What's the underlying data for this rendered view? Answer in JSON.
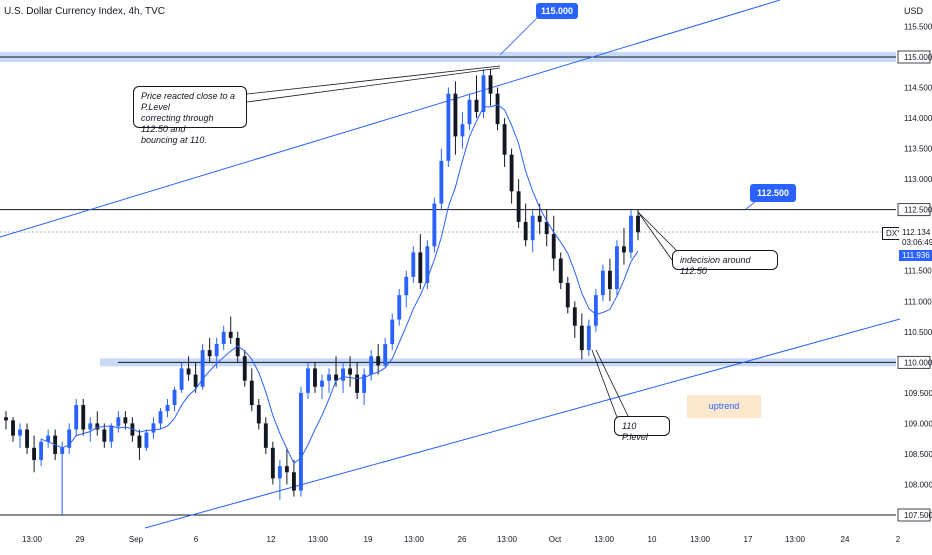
{
  "chart_data": {
    "type": "candlestick",
    "title": "U.S. Dollar Currency Index, 4h, TVC",
    "currency": "USD",
    "symbol": "DXY",
    "last_price": "112.134",
    "countdown": "03:06:49",
    "ma_value": "111.936",
    "ylim": [
      107.4,
      115.6
    ],
    "y_ticks": [
      "107.500",
      "108.000",
      "108.500",
      "109.000",
      "109.500",
      "110.000",
      "110.500",
      "111.000",
      "111.500",
      "112.000",
      "112.500",
      "113.000",
      "113.500",
      "114.000",
      "114.500",
      "115.000",
      "115.500"
    ],
    "x_ticks": [
      "13:00",
      "29",
      "Sep",
      "6",
      "12",
      "13:00",
      "19",
      "13:00",
      "26",
      "13:00",
      "Oct",
      "13:00",
      "10",
      "13:00",
      "17",
      "13:00",
      "24",
      "2"
    ],
    "grid": false,
    "ohlc": [
      [
        109.1,
        109.2,
        108.9,
        109.05
      ],
      [
        109.05,
        109.1,
        108.7,
        108.8
      ],
      [
        108.8,
        109.0,
        108.6,
        108.9
      ],
      [
        108.9,
        109.0,
        108.5,
        108.6
      ],
      [
        108.6,
        108.8,
        108.2,
        108.4
      ],
      [
        108.4,
        108.75,
        108.3,
        108.7
      ],
      [
        108.7,
        108.9,
        108.6,
        108.8
      ],
      [
        108.8,
        108.9,
        108.4,
        108.5
      ],
      [
        108.5,
        108.7,
        107.5,
        108.6
      ],
      [
        108.6,
        109.0,
        108.5,
        108.9
      ],
      [
        108.9,
        109.4,
        108.8,
        109.3
      ],
      [
        109.3,
        109.4,
        108.8,
        108.9
      ],
      [
        108.9,
        109.1,
        108.7,
        109.0
      ],
      [
        109.0,
        109.2,
        108.8,
        108.9
      ],
      [
        108.9,
        109.0,
        108.6,
        108.7
      ],
      [
        108.7,
        109.0,
        108.6,
        108.95
      ],
      [
        108.95,
        109.2,
        108.85,
        109.1
      ],
      [
        109.1,
        109.2,
        108.9,
        109.0
      ],
      [
        109.0,
        109.1,
        108.7,
        108.8
      ],
      [
        108.8,
        108.9,
        108.4,
        108.6
      ],
      [
        108.6,
        108.9,
        108.55,
        108.85
      ],
      [
        108.85,
        109.1,
        108.75,
        109.0
      ],
      [
        109.0,
        109.25,
        108.9,
        109.2
      ],
      [
        109.2,
        109.4,
        109.1,
        109.3
      ],
      [
        109.3,
        109.6,
        109.2,
        109.55
      ],
      [
        109.55,
        110.0,
        109.5,
        109.9
      ],
      [
        109.9,
        110.1,
        109.7,
        109.8
      ],
      [
        109.8,
        110.0,
        109.5,
        109.6
      ],
      [
        109.6,
        110.3,
        109.55,
        110.2
      ],
      [
        110.2,
        110.4,
        110.0,
        110.1
      ],
      [
        110.1,
        110.4,
        109.9,
        110.3
      ],
      [
        110.3,
        110.6,
        110.2,
        110.5
      ],
      [
        110.5,
        110.75,
        110.3,
        110.4
      ],
      [
        110.4,
        110.5,
        110.0,
        110.1
      ],
      [
        110.1,
        110.2,
        109.6,
        109.7
      ],
      [
        109.7,
        109.9,
        109.2,
        109.3
      ],
      [
        109.3,
        109.4,
        108.9,
        109.0
      ],
      [
        109.0,
        109.1,
        108.5,
        108.6
      ],
      [
        108.6,
        108.7,
        108.0,
        108.1
      ],
      [
        108.1,
        108.4,
        107.75,
        108.3
      ],
      [
        108.3,
        108.6,
        108.0,
        108.2
      ],
      [
        108.2,
        108.4,
        107.8,
        107.9
      ],
      [
        107.9,
        109.6,
        107.8,
        109.5
      ],
      [
        109.5,
        110.0,
        109.4,
        109.9
      ],
      [
        109.9,
        110.0,
        109.5,
        109.6
      ],
      [
        109.6,
        109.8,
        109.4,
        109.7
      ],
      [
        109.7,
        109.9,
        109.5,
        109.8
      ],
      [
        109.8,
        110.1,
        109.6,
        109.7
      ],
      [
        109.7,
        110.0,
        109.5,
        109.9
      ],
      [
        109.9,
        110.1,
        109.6,
        109.8
      ],
      [
        109.8,
        110.0,
        109.4,
        109.5
      ],
      [
        109.5,
        109.9,
        109.3,
        109.8
      ],
      [
        109.8,
        110.2,
        109.7,
        110.1
      ],
      [
        110.1,
        110.3,
        109.8,
        109.95
      ],
      [
        109.95,
        110.4,
        109.9,
        110.3
      ],
      [
        110.3,
        110.8,
        110.2,
        110.7
      ],
      [
        110.7,
        111.2,
        110.6,
        111.1
      ],
      [
        111.1,
        111.5,
        110.9,
        111.4
      ],
      [
        111.4,
        111.9,
        111.3,
        111.8
      ],
      [
        111.8,
        112.1,
        111.2,
        111.3
      ],
      [
        111.3,
        112.0,
        111.2,
        111.9
      ],
      [
        111.9,
        112.7,
        111.8,
        112.6
      ],
      [
        112.6,
        113.5,
        112.5,
        113.3
      ],
      [
        113.3,
        114.5,
        113.2,
        114.4
      ],
      [
        114.4,
        114.6,
        113.4,
        113.7
      ],
      [
        113.7,
        114.1,
        113.5,
        113.9
      ],
      [
        113.9,
        114.4,
        113.8,
        114.3
      ],
      [
        114.3,
        114.7,
        114.0,
        114.1
      ],
      [
        114.1,
        114.8,
        114.0,
        114.7
      ],
      [
        114.7,
        114.8,
        114.2,
        114.4
      ],
      [
        114.4,
        114.5,
        113.8,
        113.9
      ],
      [
        113.9,
        114.0,
        113.2,
        113.4
      ],
      [
        113.4,
        113.5,
        112.6,
        112.8
      ],
      [
        112.8,
        113.0,
        112.2,
        112.3
      ],
      [
        112.3,
        112.6,
        111.9,
        112.0
      ],
      [
        112.0,
        112.5,
        111.8,
        112.4
      ],
      [
        112.4,
        112.6,
        112.1,
        112.3
      ],
      [
        112.3,
        112.5,
        111.9,
        112.1
      ],
      [
        112.1,
        112.4,
        111.5,
        111.7
      ],
      [
        111.7,
        111.8,
        111.2,
        111.3
      ],
      [
        111.3,
        111.4,
        110.8,
        110.9
      ],
      [
        110.9,
        111.0,
        110.4,
        110.6
      ],
      [
        110.6,
        110.8,
        110.05,
        110.2
      ],
      [
        110.2,
        110.7,
        110.1,
        110.6
      ],
      [
        110.6,
        111.2,
        110.5,
        111.1
      ],
      [
        111.1,
        111.6,
        111.0,
        111.5
      ],
      [
        111.5,
        111.7,
        111.0,
        111.2
      ],
      [
        111.2,
        112.0,
        111.1,
        111.9
      ],
      [
        111.9,
        112.2,
        111.6,
        111.8
      ],
      [
        111.8,
        112.5,
        111.7,
        112.4
      ],
      [
        112.4,
        112.5,
        112.0,
        112.13
      ]
    ],
    "levels": [
      {
        "price": 115.0,
        "label": "115.000"
      },
      {
        "price": 112.5,
        "label": "112.500"
      },
      {
        "price": 110.0,
        "label": "110.000"
      },
      {
        "price": 107.5,
        "label": "107.500"
      }
    ],
    "annotations": {
      "top_tag": "115.000",
      "mid_tag": "112.500",
      "callout_peak": [
        "Price reacted close to a P.Level",
        "correcting through 112.50 and",
        "bouncing at 110."
      ],
      "callout_indecision": "indecision around 112.50",
      "callout_level": "110 P.level",
      "uptrend": "uptrend"
    },
    "colors": {
      "candle_up": "#2962ff",
      "candle_down": "#131722",
      "ma": "#2962ff",
      "trendline": "#2962ff",
      "zone": "#c9daf8",
      "uptrend_box": "#fce8cc"
    }
  }
}
